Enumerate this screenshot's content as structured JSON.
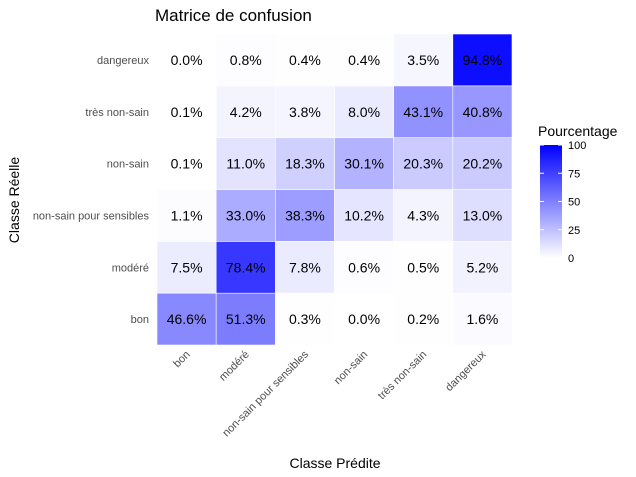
{
  "chart_data": {
    "type": "heatmap",
    "title": "Matrice de confusion",
    "xlabel": "Classe Prédite",
    "ylabel": "Classe Réelle",
    "x_categories": [
      "bon",
      "modéré",
      "non-sain pour sensibles",
      "non-sain",
      "très non-sain",
      "dangereux"
    ],
    "y_categories": [
      "bon",
      "modéré",
      "non-sain pour sensibles",
      "non-sain",
      "très non-sain",
      "dangereux"
    ],
    "values": [
      [
        46.6,
        51.3,
        0.3,
        0.0,
        0.2,
        1.6
      ],
      [
        7.5,
        78.4,
        7.8,
        0.6,
        0.5,
        5.2
      ],
      [
        1.1,
        33.0,
        38.3,
        10.2,
        4.3,
        13.0
      ],
      [
        0.1,
        11.0,
        18.3,
        30.1,
        20.3,
        20.2
      ],
      [
        0.1,
        4.2,
        3.8,
        8.0,
        43.1,
        40.8
      ],
      [
        0.0,
        0.8,
        0.4,
        0.4,
        3.5,
        94.8
      ]
    ],
    "value_suffix": "%",
    "color_scale": {
      "low": "#ffffff",
      "high": "#0000ff",
      "range": [
        0,
        100
      ]
    },
    "legend": {
      "title": "Pourcentage",
      "ticks": [
        0,
        25,
        50,
        75,
        100
      ],
      "position": "right"
    },
    "grid": true
  }
}
